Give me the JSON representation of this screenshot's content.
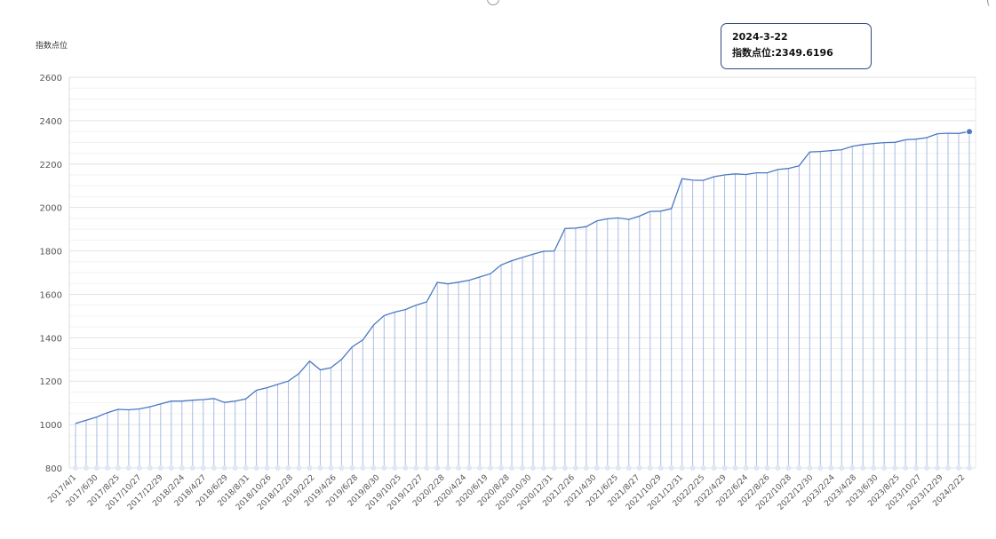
{
  "y_unit_label": "指数点位",
  "tooltip": {
    "date": "2024-3-22",
    "value_text": "指数点位:2349.6196"
  },
  "colors": {
    "line": "#4a78c2",
    "drop_line": "#aabbe4",
    "grid": "#e8e8e8",
    "axis_text": "#555555"
  },
  "chart_data": {
    "type": "line",
    "xlabel": "",
    "ylabel": "指数点位",
    "ylim": [
      800,
      2600
    ],
    "yticks": [
      800,
      1000,
      1200,
      1400,
      1600,
      1800,
      2000,
      2200,
      2400,
      2600
    ],
    "grid": true,
    "x_tick_labels": [
      "2017/4/1",
      "2017/6/30",
      "2017/8/25",
      "2017/10/27",
      "2017/12/29",
      "2018/2/24",
      "2018/4/27",
      "2018/6/29",
      "2018/8/31",
      "2018/10/26",
      "2018/12/28",
      "2019/2/22",
      "2019/4/26",
      "2019/6/28",
      "2019/8/30",
      "2019/10/25",
      "2019/12/27",
      "2020/2/28",
      "2020/4/24",
      "2020/6/19",
      "2020/8/28",
      "2020/10/30",
      "2020/12/31",
      "2021/2/26",
      "2021/4/30",
      "2021/6/25",
      "2021/8/27",
      "2021/10/29",
      "2021/12/31",
      "2022/2/25",
      "2022/4/29",
      "2022/6/24",
      "2022/8/26",
      "2022/10/28",
      "2022/12/30",
      "2023/2/24",
      "2023/4/28",
      "2023/6/30",
      "2023/8/25",
      "2023/10/27",
      "2023/12/29",
      "2024/2/22"
    ],
    "highlight": {
      "x": "2024-3-22",
      "y": 2349.6196
    },
    "series": [
      {
        "values": [
          1005,
          1020,
          1035,
          1055,
          1070,
          1068,
          1072,
          1082,
          1095,
          1108,
          1108,
          1112,
          1115,
          1120,
          1102,
          1108,
          1118,
          1158,
          1170,
          1185,
          1200,
          1235,
          1292,
          1252,
          1262,
          1300,
          1358,
          1390,
          1458,
          1502,
          1518,
          1530,
          1550,
          1565,
          1655,
          1648,
          1656,
          1665,
          1680,
          1695,
          1735,
          1755,
          1770,
          1785,
          1798,
          1800,
          1903,
          1905,
          1912,
          1938,
          1948,
          1952,
          1945,
          1960,
          1982,
          1983,
          1995,
          2133,
          2126,
          2125,
          2142,
          2150,
          2155,
          2152,
          2160,
          2160,
          2175,
          2180,
          2192,
          2256,
          2258,
          2262,
          2266,
          2282,
          2290,
          2295,
          2299,
          2300,
          2312,
          2315,
          2322,
          2340,
          2342,
          2341,
          2349.6196
        ]
      }
    ]
  }
}
